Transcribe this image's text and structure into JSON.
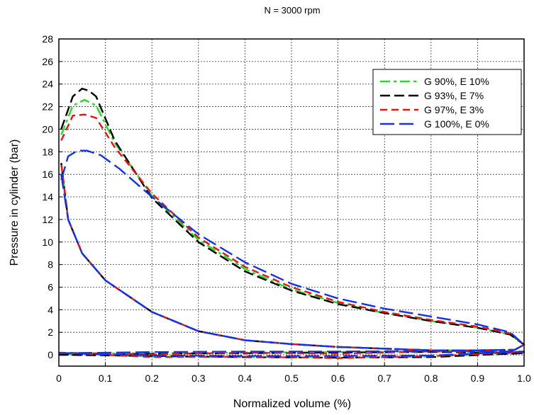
{
  "chart_data": {
    "type": "line",
    "title": "N = 3000 rpm",
    "xlabel": "Normalized volume (%)",
    "ylabel": "Pressure in cylinder (bar)",
    "xlim": [
      0,
      1.0
    ],
    "ylim": [
      -1,
      28
    ],
    "xticks": [
      0,
      0.1,
      0.2,
      0.3,
      0.4,
      0.5,
      0.6,
      0.7,
      0.8,
      0.9,
      1.0
    ],
    "xtick_labels": [
      "0",
      "0.1",
      "0.2",
      "0.3",
      "0.4",
      "0.5",
      "0.6",
      "0.7",
      "0.8",
      "0.9",
      "1.0"
    ],
    "yticks": [
      0,
      2,
      4,
      6,
      8,
      10,
      12,
      14,
      16,
      18,
      20,
      22,
      24,
      26,
      28
    ],
    "ytick_labels": [
      "0",
      "2",
      "4",
      "6",
      "8",
      "10",
      "12",
      "14",
      "16",
      "18",
      "20",
      "22",
      "24",
      "26",
      "28"
    ],
    "grid": true,
    "legend_position": "top-right",
    "series": [
      {
        "name": "G 90%,   E 10%",
        "color": "#22dd22",
        "dash": "14,5,4,5",
        "x": [
          0.005,
          0.03,
          0.055,
          0.08,
          0.12,
          0.2,
          0.3,
          0.4,
          0.5,
          0.6,
          0.7,
          0.8,
          0.9,
          0.97,
          1.0,
          0.98,
          0.9,
          0.8,
          0.7,
          0.6,
          0.5,
          0.4,
          0.3,
          0.2,
          0.1,
          0.05,
          0.02,
          0.005
        ],
        "y": [
          19.5,
          22.1,
          22.6,
          22.1,
          18.8,
          14.1,
          10.2,
          7.6,
          5.8,
          4.6,
          3.7,
          3.0,
          2.4,
          1.8,
          0.9,
          0.45,
          0.4,
          0.4,
          0.55,
          0.7,
          0.95,
          1.3,
          2.1,
          3.8,
          6.6,
          9.0,
          12.0,
          17.0
        ]
      },
      {
        "name": "G 93%,   E 7%",
        "color": "#000000",
        "dash": "14,6",
        "x": [
          0.005,
          0.03,
          0.05,
          0.065,
          0.08,
          0.12,
          0.2,
          0.3,
          0.4,
          0.5,
          0.6,
          0.7,
          0.8,
          0.9,
          0.97,
          1.0,
          0.98,
          0.9,
          0.8,
          0.7,
          0.6,
          0.5,
          0.4,
          0.3,
          0.2,
          0.1,
          0.05,
          0.02,
          0.005
        ],
        "y": [
          20.0,
          22.9,
          23.6,
          23.4,
          22.9,
          19.0,
          13.9,
          10.0,
          7.4,
          5.7,
          4.5,
          3.7,
          3.0,
          2.4,
          1.8,
          0.9,
          0.45,
          0.4,
          0.4,
          0.55,
          0.7,
          0.95,
          1.3,
          2.1,
          3.8,
          6.6,
          9.0,
          12.0,
          17.0
        ]
      },
      {
        "name": "G 97%,   E 3%",
        "color": "#ee1111",
        "dash": "10,6",
        "x": [
          0.005,
          0.03,
          0.055,
          0.08,
          0.12,
          0.2,
          0.3,
          0.4,
          0.5,
          0.6,
          0.7,
          0.8,
          0.9,
          0.97,
          1.0,
          0.98,
          0.9,
          0.8,
          0.7,
          0.6,
          0.5,
          0.4,
          0.3,
          0.2,
          0.1,
          0.05,
          0.02,
          0.005
        ],
        "y": [
          19.0,
          21.2,
          21.3,
          21.0,
          18.4,
          14.3,
          10.4,
          7.8,
          6.0,
          4.7,
          3.8,
          3.1,
          2.5,
          1.9,
          0.9,
          0.45,
          0.4,
          0.4,
          0.55,
          0.7,
          0.95,
          1.3,
          2.1,
          3.8,
          6.6,
          9.0,
          12.0,
          17.0
        ]
      },
      {
        "name": "G 100%, E 0%",
        "color": "#1133ee",
        "dash": "20,7",
        "x": [
          0.005,
          0.02,
          0.04,
          0.06,
          0.09,
          0.13,
          0.2,
          0.3,
          0.4,
          0.5,
          0.6,
          0.7,
          0.8,
          0.9,
          0.97,
          1.0,
          0.98,
          0.9,
          0.8,
          0.7,
          0.6,
          0.5,
          0.4,
          0.3,
          0.2,
          0.1,
          0.05,
          0.02,
          0.005
        ],
        "y": [
          15.5,
          17.6,
          18.1,
          18.1,
          17.7,
          16.5,
          14.0,
          10.7,
          8.2,
          6.3,
          5.0,
          4.1,
          3.4,
          2.7,
          2.0,
          0.9,
          0.45,
          0.4,
          0.4,
          0.55,
          0.7,
          0.95,
          1.3,
          2.1,
          3.8,
          6.6,
          9.0,
          12.0,
          16.0
        ]
      }
    ],
    "exhaust_intake_band": [
      {
        "series": 0,
        "x": [
          0.0,
          0.2,
          0.4,
          0.6,
          0.8,
          1.0,
          0.8,
          0.6,
          0.4,
          0.2,
          0.0
        ],
        "y": [
          0.1,
          0.15,
          0.2,
          0.25,
          0.3,
          0.2,
          -0.15,
          -0.2,
          -0.2,
          -0.15,
          0.1
        ]
      },
      {
        "series": 1,
        "x": [
          0.0,
          0.2,
          0.4,
          0.6,
          0.8,
          1.0,
          0.8,
          0.6,
          0.4,
          0.2,
          0.0
        ],
        "y": [
          0.0,
          0.1,
          0.15,
          0.2,
          0.25,
          0.15,
          -0.2,
          -0.25,
          -0.2,
          -0.1,
          0.0
        ]
      },
      {
        "series": 2,
        "x": [
          0.0,
          0.2,
          0.4,
          0.6,
          0.8,
          1.0,
          0.8,
          0.6,
          0.4,
          0.2,
          0.0
        ],
        "y": [
          0.2,
          0.05,
          0.2,
          0.1,
          0.3,
          0.25,
          -0.1,
          -0.3,
          -0.15,
          -0.2,
          0.2
        ]
      },
      {
        "series": 3,
        "x": [
          0.0,
          0.2,
          0.4,
          0.6,
          0.8,
          1.0,
          0.8,
          0.6,
          0.4,
          0.2,
          0.0
        ],
        "y": [
          0.15,
          0.25,
          0.3,
          0.3,
          0.35,
          0.3,
          -0.05,
          -0.1,
          -0.1,
          -0.05,
          0.15
        ]
      }
    ]
  }
}
